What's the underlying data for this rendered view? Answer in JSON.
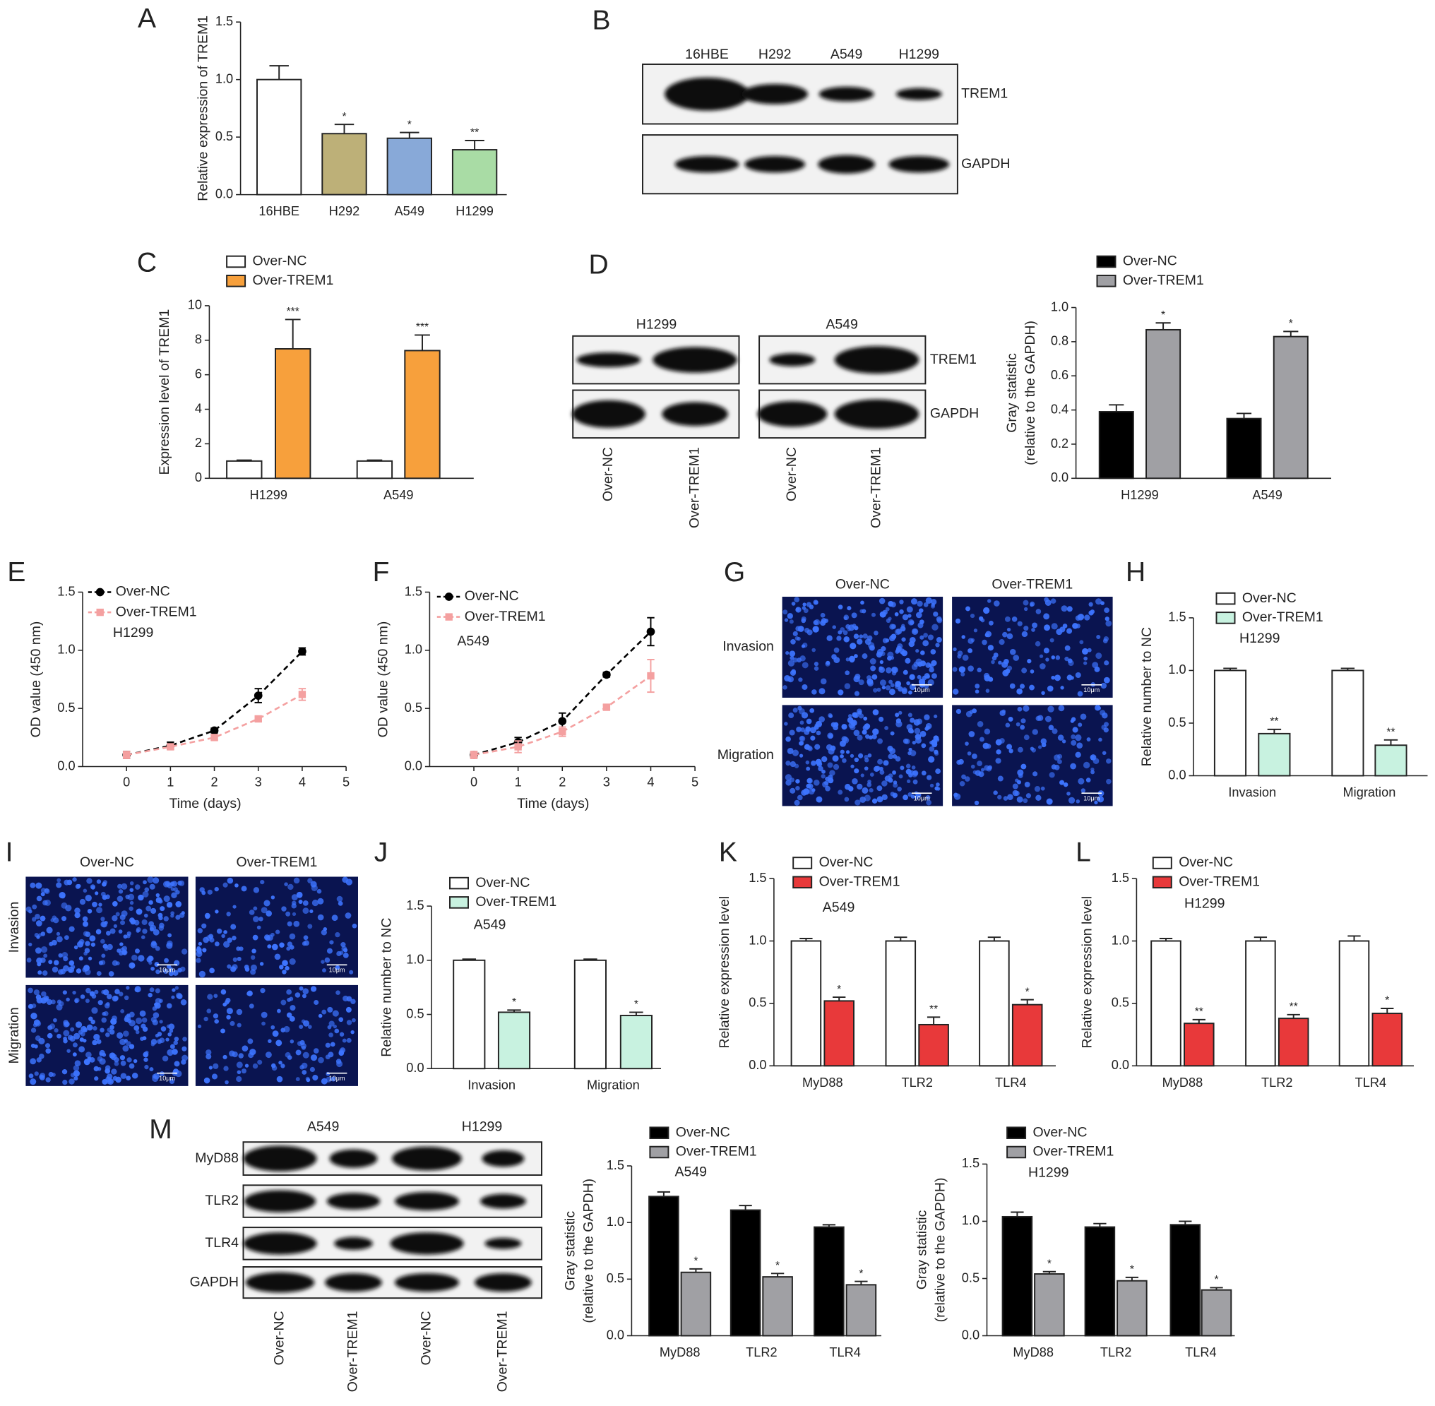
{
  "chart_data": [
    {
      "type": "bar",
      "panel_label": "A",
      "ylabel": "Relative expression of TREM1",
      "categories": [
        "16HBE",
        "H292",
        "A549",
        "H1299"
      ],
      "series": [
        {
          "colors": [
            "#ffffff",
            "#bdb078",
            "#88a9d8",
            "#a9dca5"
          ],
          "values": [
            1.0,
            0.53,
            0.49,
            0.39
          ],
          "errors": [
            0.12,
            0.08,
            0.05,
            0.08
          ],
          "significance": [
            null,
            "*",
            "*",
            "**"
          ]
        }
      ],
      "ylim": [
        0,
        1.5
      ],
      "yticks": [
        {
          "value": 0,
          "label": "0.0"
        },
        0.5,
        {
          "value": 1,
          "label": "1.0"
        },
        1.5
      ]
    },
    {
      "type": "bar",
      "panel_label": "C",
      "ylabel": "Expression level of TREM1",
      "categories": [
        "H1299",
        "A549"
      ],
      "series": [
        {
          "name": "Over-NC",
          "color": "#ffffff",
          "values": [
            1.0,
            1.0
          ],
          "errors": [
            0.05,
            0.05
          ]
        },
        {
          "name": "Over-TREM1",
          "color": "#f7a03c",
          "values": [
            7.5,
            7.4
          ],
          "errors": [
            1.7,
            0.9
          ],
          "significance": [
            "***",
            "***"
          ]
        }
      ],
      "ylim": [
        0,
        10
      ],
      "yticks": [
        0,
        2,
        4,
        6,
        8,
        10
      ]
    },
    {
      "type": "bar",
      "ylabel": [
        "Gray statistic",
        "(relative to the GAPDH)"
      ],
      "categories": [
        "H1299",
        "A549"
      ],
      "series": [
        {
          "name": "Over-NC",
          "color": "#000000",
          "values": [
            0.39,
            0.35
          ],
          "errors": [
            0.04,
            0.03
          ]
        },
        {
          "name": "Over-TREM1",
          "color": "#a0a0a4",
          "values": [
            0.87,
            0.83
          ],
          "errors": [
            0.04,
            0.03
          ],
          "significance": [
            "*",
            "*"
          ]
        }
      ],
      "ylim": [
        0,
        1.0
      ],
      "yticks": [
        {
          "value": 0,
          "label": "0.0"
        },
        0.2,
        0.4,
        0.6,
        0.8,
        {
          "value": 1,
          "label": "1.0"
        }
      ]
    },
    {
      "type": "line",
      "panel_label": "E",
      "note": "H1299",
      "xlabel": "Time (days)",
      "ylabel": "OD value (450 nm)",
      "x": [
        0,
        1,
        2,
        3,
        4
      ],
      "series": [
        {
          "name": "Over-NC",
          "color": "#000000",
          "marker": "circle",
          "dash": true,
          "values": [
            0.1,
            0.18,
            0.31,
            0.61,
            0.99
          ],
          "errors": [
            0.03,
            0.03,
            0.02,
            0.06,
            0.03
          ]
        },
        {
          "name": "Over-TREM1",
          "color": "#f4a0a0",
          "marker": "square",
          "dash": true,
          "values": [
            0.1,
            0.17,
            0.25,
            0.41,
            0.62
          ],
          "errors": [
            0.03,
            0.02,
            0.02,
            0.02,
            0.05
          ]
        }
      ],
      "xlim": [
        -1,
        5
      ],
      "xticks": [
        0,
        1,
        2,
        3,
        4,
        5
      ],
      "ylim": [
        0,
        1.5
      ],
      "yticks": [
        {
          "value": 0,
          "label": "0.0"
        },
        0.5,
        {
          "value": 1,
          "label": "1.0"
        },
        1.5
      ]
    },
    {
      "type": "line",
      "panel_label": "F",
      "note": "A549",
      "xlabel": "Time (days)",
      "ylabel": "OD value (450 nm)",
      "x": [
        0,
        1,
        2,
        3,
        4
      ],
      "series": [
        {
          "name": "Over-NC",
          "color": "#000000",
          "marker": "circle",
          "dash": true,
          "values": [
            0.1,
            0.21,
            0.39,
            0.79,
            1.16
          ],
          "errors": [
            0.02,
            0.04,
            0.07,
            0.02,
            0.12
          ]
        },
        {
          "name": "Over-TREM1",
          "color": "#f4a0a0",
          "marker": "square",
          "dash": true,
          "values": [
            0.1,
            0.17,
            0.3,
            0.51,
            0.78
          ],
          "errors": [
            0.03,
            0.05,
            0.04,
            0.02,
            0.14
          ]
        }
      ],
      "xlim": [
        -1,
        5
      ],
      "xticks": [
        0,
        1,
        2,
        3,
        4,
        5
      ],
      "ylim": [
        0,
        1.5
      ],
      "yticks": [
        {
          "value": 0,
          "label": "0.0"
        },
        0.5,
        {
          "value": 1,
          "label": "1.0"
        },
        1.5
      ]
    },
    {
      "type": "bar",
      "panel_label": "H",
      "note": "H1299",
      "ylabel": "Relative number to NC",
      "categories": [
        "Invasion",
        "Migration"
      ],
      "series": [
        {
          "name": "Over-NC",
          "color": "#ffffff",
          "values": [
            1.0,
            1.0
          ],
          "errors": [
            0.02,
            0.02
          ]
        },
        {
          "name": "Over-TREM1",
          "color": "#c8f2e0",
          "values": [
            0.4,
            0.29
          ],
          "errors": [
            0.04,
            0.05
          ],
          "significance": [
            "**",
            "**"
          ]
        }
      ],
      "ylim": [
        0,
        1.5
      ],
      "yticks": [
        {
          "value": 0,
          "label": "0.0"
        },
        0.5,
        {
          "value": 1,
          "label": "1.0"
        },
        1.5
      ]
    },
    {
      "type": "bar",
      "panel_label": "J",
      "note": "A549",
      "ylabel": "Relative number to NC",
      "categories": [
        "Invasion",
        "Migration"
      ],
      "series": [
        {
          "name": "Over-NC",
          "color": "#ffffff",
          "values": [
            1.0,
            1.0
          ],
          "errors": [
            0.01,
            0.01
          ]
        },
        {
          "name": "Over-TREM1",
          "color": "#c8f2e0",
          "values": [
            0.52,
            0.49
          ],
          "errors": [
            0.02,
            0.03
          ],
          "significance": [
            "*",
            "*"
          ]
        }
      ],
      "ylim": [
        0,
        1.5
      ],
      "yticks": [
        {
          "value": 0,
          "label": "0.0"
        },
        0.5,
        {
          "value": 1,
          "label": "1.0"
        },
        1.5
      ]
    },
    {
      "type": "bar",
      "panel_label": "K",
      "note": "A549",
      "ylabel": "Relative expression level",
      "categories": [
        "MyD88",
        "TLR2",
        "TLR4"
      ],
      "series": [
        {
          "name": "Over-NC",
          "color": "#ffffff",
          "values": [
            1.0,
            1.0,
            1.0
          ],
          "errors": [
            0.02,
            0.03,
            0.03
          ]
        },
        {
          "name": "Over-TREM1",
          "color": "#e8393a",
          "values": [
            0.52,
            0.33,
            0.49
          ],
          "errors": [
            0.03,
            0.06,
            0.04
          ],
          "significance": [
            "*",
            "**",
            "*"
          ]
        }
      ],
      "ylim": [
        0,
        1.5
      ],
      "yticks": [
        {
          "value": 0,
          "label": "0.0"
        },
        0.5,
        {
          "value": 1,
          "label": "1.0"
        },
        1.5
      ]
    },
    {
      "type": "bar",
      "panel_label": "L",
      "note": "H1299",
      "ylabel": "Relative expression level",
      "categories": [
        "MyD88",
        "TLR2",
        "TLR4"
      ],
      "series": [
        {
          "name": "Over-NC",
          "color": "#ffffff",
          "values": [
            1.0,
            1.0,
            1.0
          ],
          "errors": [
            0.02,
            0.03,
            0.04
          ]
        },
        {
          "name": "Over-TREM1",
          "color": "#e8393a",
          "values": [
            0.34,
            0.38,
            0.42
          ],
          "errors": [
            0.03,
            0.03,
            0.04
          ],
          "significance": [
            "**",
            "**",
            "*"
          ]
        }
      ],
      "ylim": [
        0,
        1.5
      ],
      "yticks": [
        {
          "value": 0,
          "label": "0.0"
        },
        0.5,
        {
          "value": 1,
          "label": "1.0"
        },
        1.5
      ]
    },
    {
      "type": "bar",
      "note": "A549",
      "ylabel": [
        "Gray statistic",
        "(relative to the GAPDH)"
      ],
      "categories": [
        "MyD88",
        "TLR2",
        "TLR4"
      ],
      "series": [
        {
          "name": "Over-NC",
          "color": "#000000",
          "values": [
            1.23,
            1.11,
            0.96
          ],
          "errors": [
            0.04,
            0.04,
            0.02
          ]
        },
        {
          "name": "Over-TREM1",
          "color": "#a0a0a4",
          "values": [
            0.56,
            0.52,
            0.45
          ],
          "errors": [
            0.03,
            0.03,
            0.03
          ],
          "significance": [
            "*",
            "*",
            "*"
          ]
        }
      ],
      "ylim": [
        0,
        1.5
      ],
      "yticks": [
        {
          "value": 0,
          "label": "0.0"
        },
        0.5,
        {
          "value": 1,
          "label": "1.0"
        },
        1.5
      ]
    },
    {
      "type": "bar",
      "note": "H1299",
      "ylabel": [
        "Gray statistic",
        "(relative to the GAPDH)"
      ],
      "categories": [
        "MyD88",
        "TLR2",
        "TLR4"
      ],
      "series": [
        {
          "name": "Over-NC",
          "color": "#000000",
          "values": [
            1.04,
            0.95,
            0.97
          ],
          "errors": [
            0.04,
            0.03,
            0.03
          ]
        },
        {
          "name": "Over-TREM1",
          "color": "#a0a0a4",
          "values": [
            0.54,
            0.48,
            0.4
          ],
          "errors": [
            0.02,
            0.03,
            0.02
          ],
          "significance": [
            "*",
            "*",
            "*"
          ]
        }
      ],
      "ylim": [
        0,
        1.5
      ],
      "yticks": [
        {
          "value": 0,
          "label": "0.0"
        },
        0.5,
        {
          "value": 1,
          "label": "1.0"
        },
        1.5
      ]
    }
  ],
  "blots": [
    {
      "panel_label": "B",
      "lanes": [
        "16HBE",
        "H292",
        "A549",
        "H1299"
      ],
      "rows": [
        "TREM1",
        "GAPDH"
      ]
    },
    {
      "panel_label": "D",
      "groups": [
        "H1299",
        "A549"
      ],
      "lanes": [
        "Over-NC",
        "Over-TREM1",
        "Over-NC",
        "Over-TREM1"
      ],
      "rows": [
        "TREM1",
        "GAPDH"
      ]
    },
    {
      "panel_label": "M",
      "groups": [
        "A549",
        "H1299"
      ],
      "lanes": [
        "Over-NC",
        "Over-TREM1",
        "Over-NC",
        "Over-TREM1"
      ],
      "rows": [
        "MyD88",
        "TLR2",
        "TLR4",
        "GAPDH"
      ]
    }
  ],
  "micrographs": [
    {
      "panel_label": "G",
      "columns": [
        "Over-NC",
        "Over-TREM1"
      ],
      "rows": [
        "Invasion",
        "Migration"
      ],
      "scale_bar": "10μm"
    },
    {
      "panel_label": "I",
      "columns": [
        "Over-NC",
        "Over-TREM1"
      ],
      "rows": [
        "Invasion",
        "Migration"
      ],
      "scale_bar": "10μm"
    }
  ]
}
